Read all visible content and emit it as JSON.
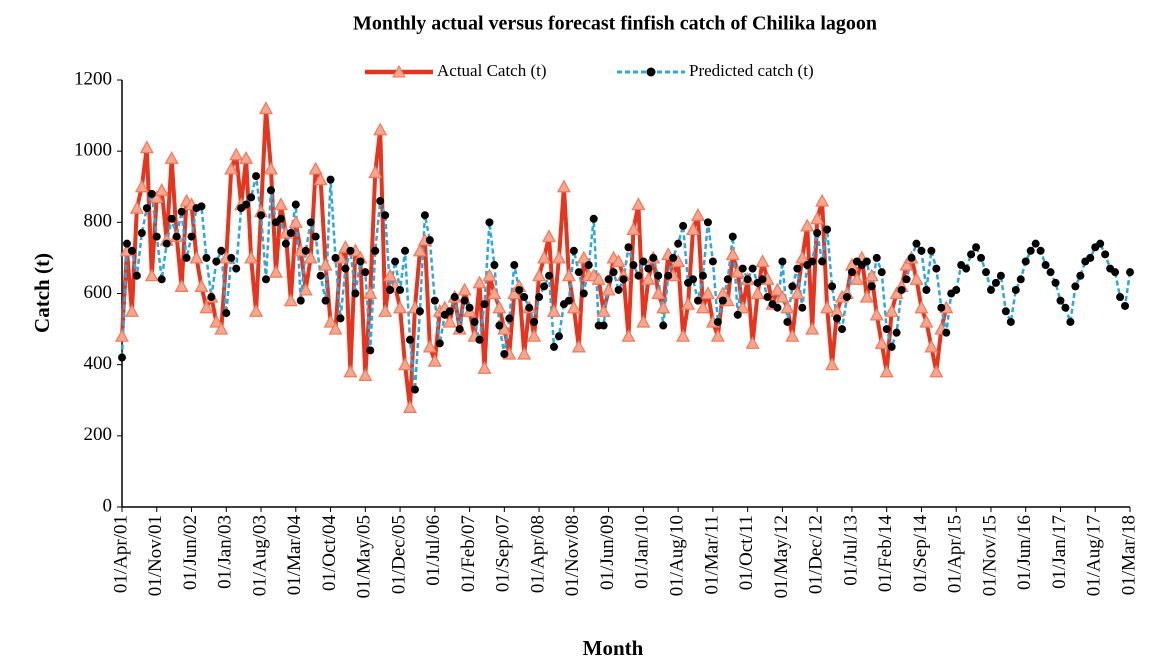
{
  "chart_data": {
    "type": "line",
    "title": "Monthly actual versus forecast finfish catch of Chilika lagoon",
    "x_label": "Month",
    "y_label": "Catch (t)",
    "categories": [
      "01/Apr/01",
      null,
      null,
      null,
      null,
      null,
      null,
      "01/Nov/01",
      null,
      null,
      null,
      null,
      null,
      null,
      "01/Jun/02",
      null,
      null,
      null,
      null,
      null,
      null,
      "01/Jan/03",
      null,
      null,
      null,
      null,
      null,
      null,
      "01/Aug/03",
      null,
      null,
      null,
      null,
      null,
      null,
      "01/Mar/04",
      null,
      null,
      null,
      null,
      null,
      null,
      "01/Oct/04",
      null,
      null,
      null,
      null,
      null,
      null,
      "01/May/05",
      null,
      null,
      null,
      null,
      null,
      null,
      "01/Dec/05",
      null,
      null,
      null,
      null,
      null,
      null,
      "01/Jul/06",
      null,
      null,
      null,
      null,
      null,
      null,
      "01/Feb/07",
      null,
      null,
      null,
      null,
      null,
      null,
      "01/Sep/07",
      null,
      null,
      null,
      null,
      null,
      null,
      "01/Apr/08",
      null,
      null,
      null,
      null,
      null,
      null,
      "01/Nov/08",
      null,
      null,
      null,
      null,
      null,
      null,
      "01/Jun/09",
      null,
      null,
      null,
      null,
      null,
      null,
      "01/Jan/10",
      null,
      null,
      null,
      null,
      null,
      null,
      "01/Aug/10",
      null,
      null,
      null,
      null,
      null,
      null,
      "01/Mar/11",
      null,
      null,
      null,
      null,
      null,
      null,
      "01/Oct/11",
      null,
      null,
      null,
      null,
      null,
      null,
      "01/May/12",
      null,
      null,
      null,
      null,
      null,
      null,
      "01/Dec/12",
      null,
      null,
      null,
      null,
      null,
      null,
      "01/Jul/13",
      null,
      null,
      null,
      null,
      null,
      null,
      "01/Feb/14",
      null,
      null,
      null,
      null,
      null,
      null,
      "01/Sep/14",
      null,
      null,
      null,
      null,
      null,
      null,
      "01/Apr/15",
      null,
      null,
      null,
      null,
      null,
      null,
      "01/Nov/15",
      null,
      null,
      null,
      null,
      null,
      null,
      "01/Jun/16",
      null,
      null,
      null,
      null,
      null,
      null,
      "01/Jan/17",
      null,
      null,
      null,
      null,
      null,
      null,
      "01/Aug/17",
      null,
      null,
      null,
      null,
      null,
      null,
      "01/Mar/18"
    ],
    "series": [
      {
        "name": "Actual Catch (t)",
        "color": "#e8341c",
        "marker": "triangle",
        "dashed": false,
        "values": [
          480,
          720,
          550,
          840,
          900,
          1010,
          650,
          870,
          890,
          750,
          980,
          760,
          620,
          860,
          850,
          700,
          620,
          560,
          590,
          520,
          500,
          700,
          950,
          990,
          850,
          980,
          700,
          550,
          830,
          1120,
          950,
          660,
          850,
          770,
          580,
          800,
          720,
          610,
          700,
          950,
          920,
          680,
          520,
          500,
          700,
          730,
          380,
          720,
          700,
          370,
          600,
          940,
          1060,
          550,
          650,
          620,
          560,
          400,
          280,
          560,
          720,
          750,
          450,
          410,
          550,
          560,
          520,
          590,
          500,
          610,
          550,
          480,
          630,
          390,
          650,
          600,
          560,
          500,
          430,
          600,
          620,
          430,
          560,
          480,
          650,
          700,
          760,
          550,
          700,
          900,
          650,
          560,
          450,
          700,
          650,
          650,
          640,
          550,
          610,
          700,
          690,
          650,
          480,
          780,
          850,
          520,
          640,
          700,
          600,
          560,
          710,
          650,
          690,
          480,
          570,
          780,
          820,
          560,
          600,
          520,
          480,
          600,
          580,
          710,
          660,
          560,
          640,
          460,
          600,
          690,
          640,
          570,
          610,
          590,
          560,
          480,
          600,
          700,
          790,
          500,
          810,
          860,
          560,
          400,
          550,
          590,
          600,
          680,
          640,
          700,
          590,
          650,
          540,
          460,
          380,
          550,
          600,
          620,
          680,
          700,
          640,
          560,
          520,
          450,
          380,
          500,
          560,
          null,
          null,
          null,
          null,
          null,
          null,
          null,
          null,
          null,
          null,
          null,
          null,
          null,
          null,
          null,
          null,
          null,
          null,
          null,
          null,
          null,
          null,
          null,
          null,
          null,
          null,
          null,
          null,
          null,
          null,
          null,
          null,
          null,
          null,
          null,
          null,
          null
        ]
      },
      {
        "name": "Predicted catch (t)",
        "color": "#29a9e0",
        "marker": "dot",
        "dashed": true,
        "values": [
          420,
          740,
          720,
          650,
          770,
          840,
          880,
          760,
          640,
          740,
          810,
          760,
          830,
          700,
          760,
          840,
          845,
          700,
          590,
          690,
          720,
          545,
          700,
          670,
          840,
          850,
          870,
          930,
          820,
          640,
          890,
          800,
          810,
          740,
          770,
          850,
          580,
          720,
          800,
          760,
          650,
          580,
          920,
          700,
          530,
          670,
          720,
          600,
          690,
          660,
          440,
          720,
          860,
          820,
          610,
          690,
          610,
          720,
          470,
          330,
          550,
          820,
          750,
          580,
          460,
          540,
          550,
          590,
          500,
          580,
          560,
          520,
          470,
          570,
          800,
          680,
          510,
          430,
          530,
          680,
          610,
          590,
          560,
          520,
          590,
          620,
          650,
          450,
          480,
          570,
          580,
          720,
          660,
          600,
          680,
          810,
          510,
          510,
          640,
          660,
          610,
          640,
          730,
          680,
          650,
          690,
          670,
          700,
          650,
          510,
          650,
          700,
          740,
          790,
          630,
          640,
          580,
          650,
          800,
          690,
          520,
          580,
          640,
          760,
          540,
          670,
          640,
          670,
          630,
          640,
          590,
          570,
          560,
          690,
          520,
          620,
          670,
          560,
          680,
          690,
          770,
          690,
          780,
          620,
          530,
          500,
          590,
          660,
          690,
          680,
          690,
          620,
          700,
          660,
          500,
          450,
          490,
          610,
          640,
          700,
          740,
          720,
          610,
          720,
          670,
          560,
          490,
          600,
          610,
          680,
          670,
          710,
          730,
          700,
          660,
          610,
          630,
          650,
          550,
          520,
          610,
          640,
          690,
          720,
          740,
          720,
          680,
          660,
          630,
          580,
          560,
          520,
          620,
          650,
          690,
          700,
          730,
          740,
          710,
          670,
          660,
          590,
          565,
          660
        ]
      }
    ],
    "ylim": [
      0,
      1200
    ],
    "yticks": [
      0,
      200,
      400,
      600,
      800,
      1000,
      1200
    ],
    "grid": false,
    "legend": "top"
  }
}
